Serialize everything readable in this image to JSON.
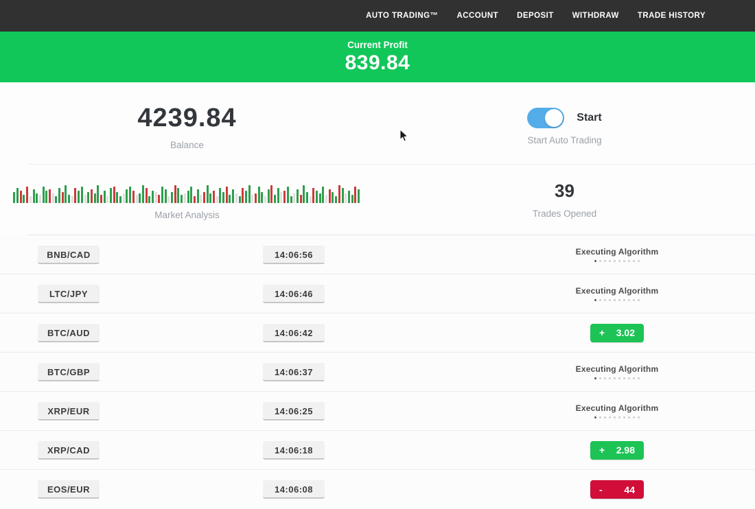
{
  "nav": {
    "items": [
      "AUTO TRADING™",
      "ACCOUNT",
      "DEPOSIT",
      "WITHDRAW",
      "TRADE HISTORY"
    ]
  },
  "profit_banner": {
    "label": "Current Profit",
    "value": "839.84"
  },
  "balance": {
    "value": "4239.84",
    "label": "Balance"
  },
  "auto_trading": {
    "toggle_state": "on",
    "toggle_label": "Start",
    "caption": "Start Auto Trading"
  },
  "market": {
    "caption": "Market Analysis"
  },
  "trades_opened": {
    "value": "39",
    "caption": "Trades Opened"
  },
  "trades": {
    "executing_label": "Executing Algorithm",
    "rows": [
      {
        "pair": "BNB/CAD",
        "time": "14:06:56",
        "status": "executing"
      },
      {
        "pair": "LTC/JPY",
        "time": "14:06:46",
        "status": "executing"
      },
      {
        "pair": "BTC/AUD",
        "time": "14:06:42",
        "status": "win",
        "sign": "+",
        "amount": "3.02"
      },
      {
        "pair": "BTC/GBP",
        "time": "14:06:37",
        "status": "executing"
      },
      {
        "pair": "XRP/EUR",
        "time": "14:06:25",
        "status": "executing"
      },
      {
        "pair": "XRP/CAD",
        "time": "14:06:18",
        "status": "win",
        "sign": "+",
        "amount": "2.98"
      },
      {
        "pair": "EOS/EUR",
        "time": "14:06:08",
        "status": "loss",
        "sign": "-",
        "amount": "44"
      }
    ]
  },
  "colors": {
    "topbar": "#313131",
    "banner_green": "#12c75a",
    "win_green": "#1dc355",
    "loss_red": "#d00e38",
    "toggle_blue": "#54ade9"
  },
  "chart_data": {
    "type": "bar",
    "title": "Market Analysis",
    "note": "mini market-activity strip; entries are colorLetter+heightPx, colors: g=green up, r=red down, l=light neutral",
    "bar_colors": {
      "g": "#2e9e4b",
      "r": "#cc3a3a",
      "l": "#dedede"
    },
    "bars": [
      "g16",
      "g22",
      "r18",
      "g12",
      "r24",
      "l10",
      "g20",
      "g14",
      "l12",
      "g24",
      "g18",
      "r20",
      "l14",
      "g10",
      "g22",
      "r16",
      "g26",
      "g12",
      "l10",
      "r22",
      "g18",
      "g24",
      "l12",
      "g16",
      "r20",
      "g14",
      "g26",
      "r12",
      "g18",
      "l10",
      "g22",
      "r24",
      "g16",
      "g10",
      "l14",
      "g20",
      "g24",
      "r18",
      "l12",
      "g14",
      "g26",
      "r22",
      "g10",
      "g18",
      "l16",
      "r12",
      "g24",
      "g20",
      "l10",
      "g16",
      "r26",
      "g22",
      "g12",
      "l14",
      "g18",
      "g24",
      "r10",
      "g20",
      "l12",
      "r16",
      "g26",
      "g14",
      "r18",
      "l10",
      "g22",
      "g16",
      "r24",
      "g12",
      "g20",
      "l14",
      "g10",
      "r22",
      "g18",
      "g26",
      "l12",
      "r14",
      "g24",
      "g16",
      "l10",
      "g20",
      "r26",
      "g12",
      "g22",
      "l16",
      "r18",
      "g24",
      "g10",
      "l14",
      "g20",
      "r12",
      "g26",
      "g16",
      "l10",
      "r22",
      "g18",
      "g14",
      "g24",
      "l12",
      "r20",
      "g16",
      "g10",
      "r26",
      "g22",
      "l14",
      "g18",
      "g12",
      "r24",
      "g20"
    ]
  }
}
